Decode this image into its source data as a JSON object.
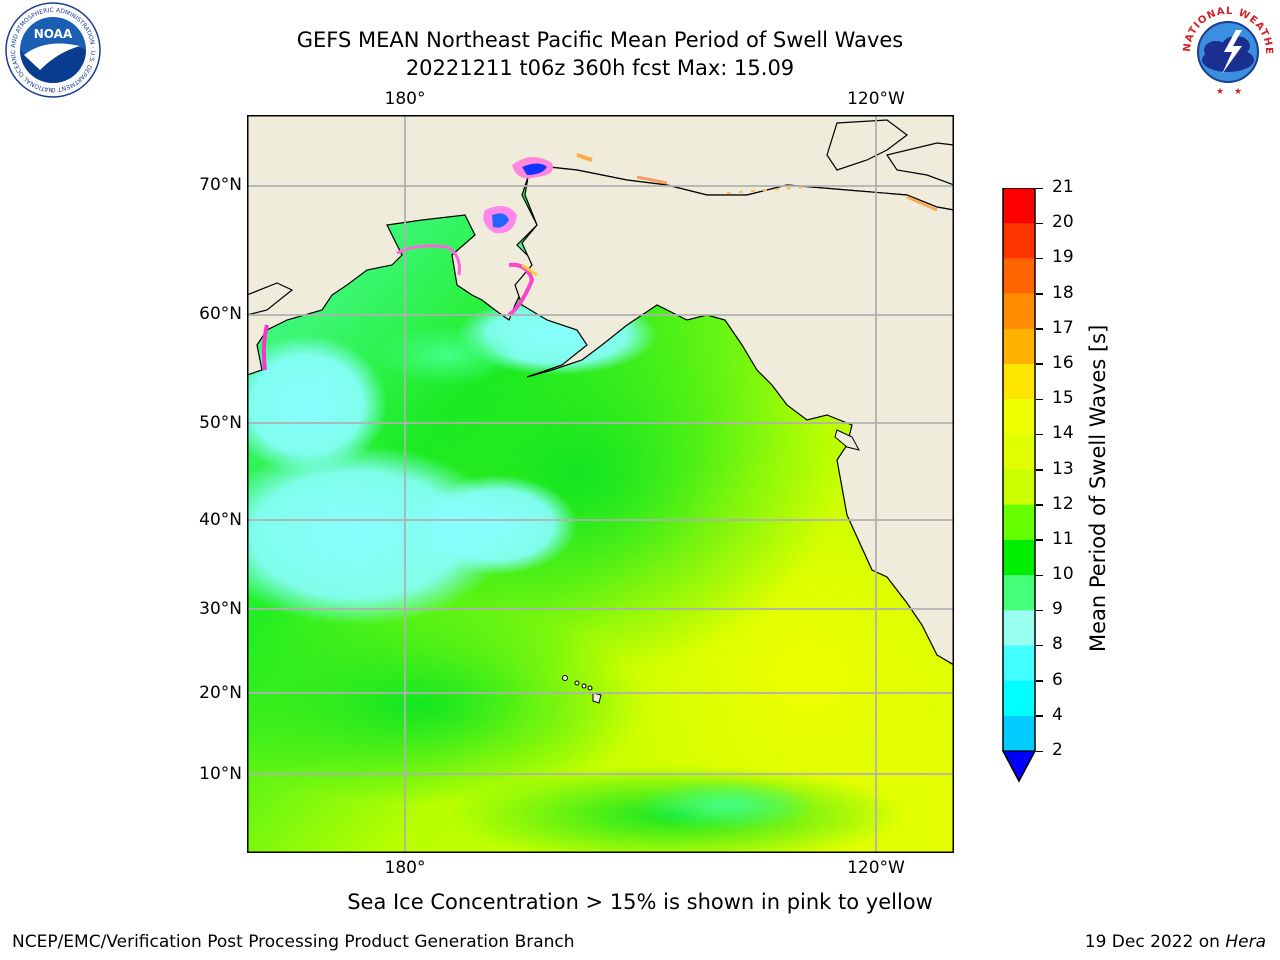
{
  "header": {
    "title_line1": "GEFS MEAN Northeast Pacific Mean Period of Swell Waves",
    "title_line2": "20221211 t06z 360h fcst   Max: 15.09"
  },
  "map": {
    "lat_labels": [
      "70°N",
      "60°N",
      "50°N",
      "40°N",
      "30°N",
      "20°N",
      "10°N"
    ],
    "lon_labels_top": [
      "180°",
      "120°W"
    ],
    "lon_labels_bottom": [
      "180°",
      "120°W"
    ],
    "land_color": "#efecdc",
    "grid_color": "#b0b0b0"
  },
  "colorbar": {
    "label": "Mean Period of Swell Waves [s]",
    "ticks": [
      "21",
      "20",
      "19",
      "18",
      "17",
      "16",
      "15",
      "14",
      "13",
      "12",
      "11",
      "10",
      "9",
      "8",
      "6",
      "4",
      "2"
    ],
    "colors": [
      "#ff0000",
      "#ff3300",
      "#ff6600",
      "#ff8c00",
      "#ffb300",
      "#ffe600",
      "#f0ff00",
      "#e0ff00",
      "#ccff00",
      "#66ff00",
      "#00ee00",
      "#44ff77",
      "#99ffee",
      "#44ffff",
      "#00ffff",
      "#00ccff",
      "#0077ff"
    ],
    "extend_color": "#0000ff"
  },
  "caption": "Sea Ice Concentration > 15% is shown in pink to yellow",
  "footer": {
    "left": "NCEP/EMC/Verification Post Processing Product Generation Branch",
    "right_prefix": "19 Dec 2022 on ",
    "right_italic": "Hera"
  },
  "logos": {
    "noaa_text": "NOAA",
    "noaa_ring_text": "NATIONAL OCEANIC AND ATMOSPHERIC ADMINISTRATION · U.S. DEPARTMENT OF COMMERCE",
    "nws_ring_text": "NATIONAL WEATHER SERVICE"
  }
}
